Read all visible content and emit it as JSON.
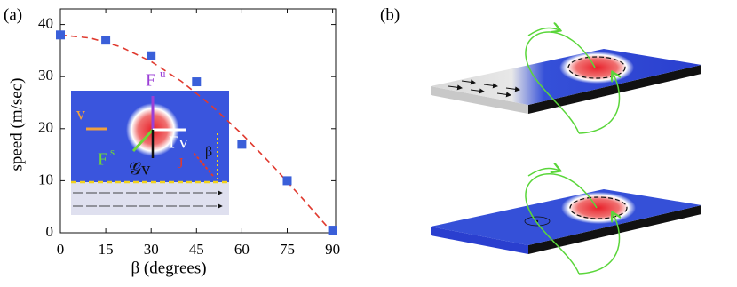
{
  "chart_data": {
    "type": "scatter",
    "panel_label": "(a)",
    "xlabel": "β (degrees)",
    "ylabel": "speed (m/sec)",
    "xlim": [
      0,
      91
    ],
    "ylim": [
      0,
      43
    ],
    "xticks": [
      0,
      15,
      30,
      45,
      60,
      75,
      90
    ],
    "yticks": [
      0,
      10,
      20,
      30,
      40
    ],
    "x": [
      0,
      15,
      30,
      45,
      60,
      75,
      90
    ],
    "series": [
      {
        "color": "#3a5fd9",
        "values": [
          38,
          37,
          34,
          29,
          17,
          10,
          0.5
        ]
      }
    ],
    "fit": {
      "type": "line",
      "color": "#e03a2f",
      "dashed": true,
      "x": [
        0,
        10,
        20,
        30,
        40,
        50,
        60,
        70,
        80,
        90
      ],
      "values": [
        38,
        37.4,
        35.7,
        32.9,
        29.1,
        24.4,
        19,
        13,
        6.6,
        0
      ]
    },
    "inset": {
      "force_u": "F",
      "force_u_sup": "u",
      "velocity": "v",
      "gamma": "Γv",
      "force_s": "F",
      "force_s_sup": "s",
      "g_term": "𝒢v",
      "current": "J",
      "angle": "β"
    }
  },
  "diagram": {
    "label": "(b)"
  }
}
